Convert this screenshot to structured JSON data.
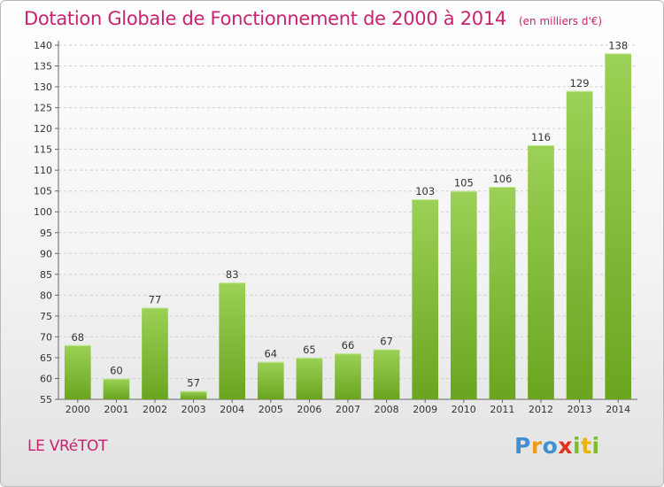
{
  "header": {
    "title": "Dotation Globale de Fonctionnement de 2000 à 2014",
    "subtitle": "(en milliers d'€)"
  },
  "footer": {
    "town": "LE VRéTOT",
    "logo_text": "Proxiti"
  },
  "colors": {
    "accent": "#c8236e",
    "bar_top": "#9bd156",
    "bar_bottom": "#6aa51f",
    "grid": "#cfcfcf",
    "axis": "#666666"
  },
  "chart_data": {
    "type": "bar",
    "title": "Dotation Globale de Fonctionnement de 2000 à 2014",
    "xlabel": "",
    "ylabel": "",
    "categories": [
      "2000",
      "2001",
      "2002",
      "2003",
      "2004",
      "2005",
      "2006",
      "2007",
      "2008",
      "2009",
      "2010",
      "2011",
      "2012",
      "2013",
      "2014"
    ],
    "values": [
      68,
      60,
      77,
      57,
      83,
      64,
      65,
      66,
      67,
      103,
      105,
      106,
      116,
      129,
      138
    ],
    "ylim": [
      55,
      140
    ],
    "ytick_step": 5,
    "grid": true,
    "legend": "none"
  }
}
